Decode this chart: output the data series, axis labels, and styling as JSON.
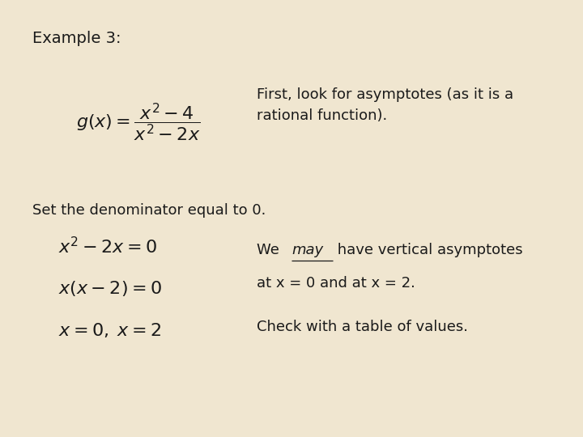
{
  "background_color": "#f0e6d0",
  "text_color": "#1a1a1a",
  "example_label": "Example 3:",
  "first_text": "First, look for asymptotes (as it is a\nrational function).",
  "g_formula": "$g(x) = \\dfrac{x^2 - 4}{x^2 - 2x}$",
  "set_denom": "Set the denominator equal to 0.",
  "eq1": "$x^2 - 2x = 0$",
  "eq2": "$x(x-2)=0$",
  "eq3": "$x = 0, \\; x = 2$",
  "we_text_before": "We ",
  "we_text_underline": "may",
  "we_text_after": " have vertical asymptotes",
  "at_x_text": "at x = 0 and at x = 2.",
  "check_text": "Check with a table of values.",
  "fontsize_label": 14,
  "fontsize_body": 13,
  "fontsize_math": 16
}
